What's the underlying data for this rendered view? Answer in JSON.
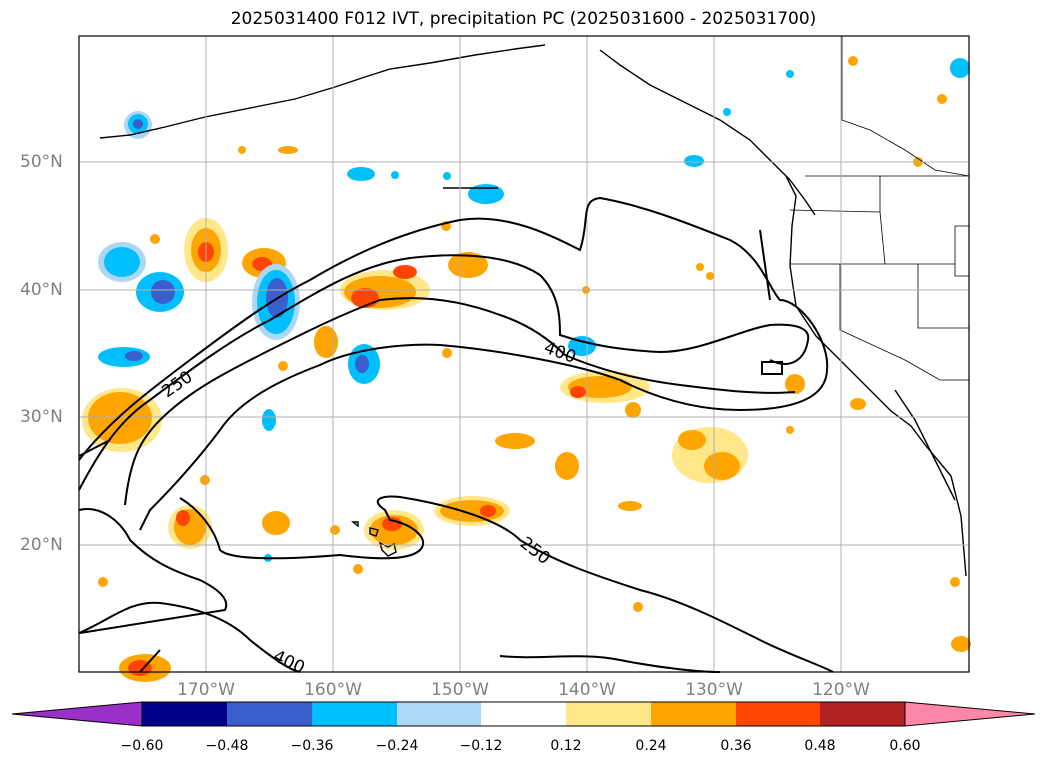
{
  "title": "2025031400 F012 IVT, precipitation PC (2025031600 - 2025031700)",
  "map": {
    "lat_labels": [
      "50°N",
      "40°N",
      "30°N",
      "20°N"
    ],
    "lon_labels": [
      "170°W",
      "160°W",
      "150°W",
      "140°W",
      "130°W",
      "120°W"
    ],
    "contour_labels": [
      "250",
      "400",
      "250",
      "400"
    ]
  },
  "colorbar": {
    "ticks": [
      "−0.60",
      "−0.48",
      "−0.36",
      "−0.24",
      "−0.12",
      "0.12",
      "0.24",
      "0.36",
      "0.48",
      "0.60"
    ],
    "colors": [
      "#9b30c8",
      "#00008b",
      "#3a5fcd",
      "#00bfff",
      "#add8f5",
      "#ffffff",
      "#ffe78a",
      "#ffa500",
      "#ff4500",
      "#b22222",
      "#ff88aa"
    ]
  }
}
